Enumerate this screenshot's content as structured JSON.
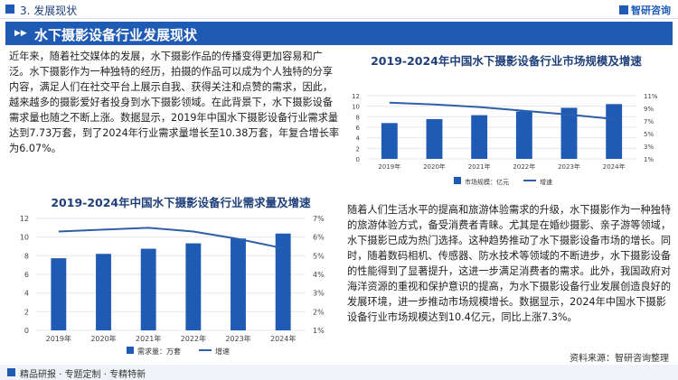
{
  "header": {
    "section": "3. 发展现状",
    "logo_text": "智研咨询",
    "banner_title": "水下摄影设备行业发展现状"
  },
  "paragraph1": "近年来，随着社交媒体的发展，水下摄影作品的传播变得更加容易和广泛。水下摄影作为一种独特的经历，拍摄的作品可以成为个人独特的分享内容，满足人们在社交平台上展示自我、获得关注和点赞的需求，因此，越来越多的摄影爱好者投身到水下摄影领域。在此背景下，水下摄影设备需求量也随之不断上涨。数据显示，2019年中国水下摄影设备行业需求量达到7.73万套，到了2024年行业需求量增长至10.38万套，年复合增长率为6.07%。",
  "paragraph2": "随着人们生活水平的提高和旅游体验需求的升级，水下摄影作为一种独特的旅游体验方式，备受消费者青睐。尤其是在婚纱摄影、亲子游等领域，水下摄影已成为热门选择。这种趋势推动了水下摄影设备市场的增长。同时，随着数码相机、传感器、防水技术等领域的不断进步，水下摄影设备的性能得到了显著提升，这进一步满足消费者的需求。此外，我国政府对海洋资源的重视和保护意识的提高，为水下摄影设备行业发展创造良好的发展环境，进一步推动市场规模增长。数据显示，2024年中国水下摄影设备行业市场规模达到10.4亿元，同比上涨7.3%。",
  "footer": {
    "text": "精品研报 · 专题定制 · 专精特新",
    "source": "资料来源：智研咨询整理"
  },
  "watermark": "智研咨询",
  "chart_data": [
    {
      "type": "bar",
      "title": "2019-2024年中国水下摄影设备行业需求量及增速",
      "categories": [
        "2019年",
        "2020年",
        "2021年",
        "2022年",
        "2023年",
        "2024年"
      ],
      "series": [
        {
          "name": "需求量：万套",
          "type": "bar",
          "axis": "left",
          "values": [
            7.73,
            8.2,
            8.75,
            9.33,
            9.85,
            10.38
          ],
          "color": "#1f5bb5"
        },
        {
          "name": "增速",
          "type": "line",
          "axis": "right",
          "values": [
            6.3,
            6.4,
            6.5,
            6.3,
            5.9,
            5.4
          ],
          "color": "#2e5fa8"
        }
      ],
      "left_ticks": [
        "0",
        "2",
        "4",
        "6",
        "8",
        "10",
        "12"
      ],
      "right_ticks": [
        "1%",
        "2%",
        "3%",
        "4%",
        "5%",
        "6%",
        "7%"
      ],
      "ylim": [
        0,
        12
      ],
      "y2lim": [
        1,
        7
      ],
      "legend_position": "bottom"
    },
    {
      "type": "bar",
      "title": "2019-2024年中国水下摄影设备行业市场规模及增速",
      "categories": [
        "2019年",
        "2020年",
        "2021年",
        "2022年",
        "2023年",
        "2024年"
      ],
      "series": [
        {
          "name": "市场规模：亿元",
          "type": "bar",
          "axis": "left",
          "values": [
            6.8,
            7.55,
            8.3,
            9.0,
            9.7,
            10.4
          ],
          "color": "#1f5bb5"
        },
        {
          "name": "增速",
          "type": "line",
          "axis": "right",
          "values": [
            9.9,
            9.6,
            9.2,
            8.6,
            8.0,
            7.3
          ],
          "color": "#2e5fa8"
        }
      ],
      "left_ticks": [
        "0",
        "2",
        "4",
        "6",
        "8",
        "10",
        "12"
      ],
      "right_ticks": [
        "1%",
        "3%",
        "5%",
        "7%",
        "9%",
        "11%"
      ],
      "ylim": [
        0,
        12
      ],
      "y2lim": [
        1,
        11
      ],
      "legend_position": "bottom"
    }
  ]
}
